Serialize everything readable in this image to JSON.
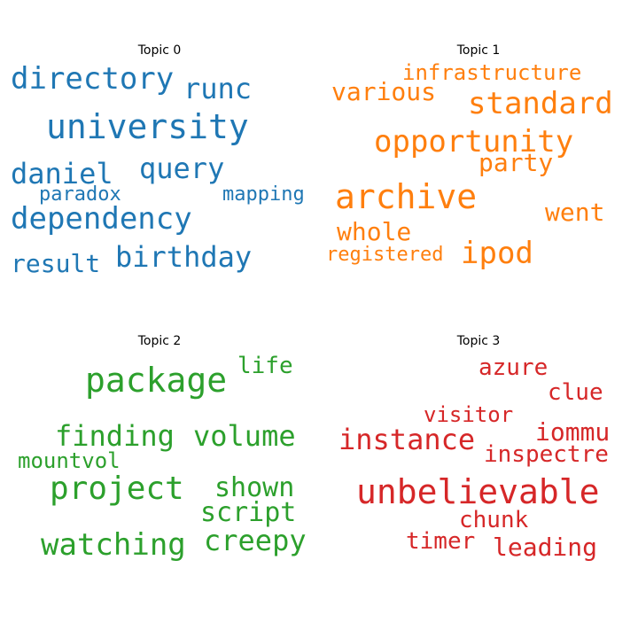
{
  "chart_data": {
    "type": "wordcloud",
    "panels": [
      {
        "title": "Topic 0",
        "color": "#1f77b4",
        "words": [
          "directory",
          "runc",
          "university",
          "daniel",
          "query",
          "paradox",
          "mapping",
          "dependency",
          "result",
          "birthday"
        ]
      },
      {
        "title": "Topic 1",
        "color": "#ff7f0e",
        "words": [
          "infrastructure",
          "various",
          "standard",
          "opportunity",
          "party",
          "archive",
          "went",
          "whole",
          "registered",
          "ipod"
        ]
      },
      {
        "title": "Topic 2",
        "color": "#2ca02c",
        "words": [
          "life",
          "package",
          "finding",
          "volume",
          "mountvol",
          "project",
          "shown",
          "script",
          "watching",
          "creepy"
        ]
      },
      {
        "title": "Topic 3",
        "color": "#d62728",
        "words": [
          "azure",
          "clue",
          "visitor",
          "instance",
          "iommu",
          "inspectre",
          "unbelievable",
          "chunk",
          "timer",
          "leading"
        ]
      }
    ]
  }
}
